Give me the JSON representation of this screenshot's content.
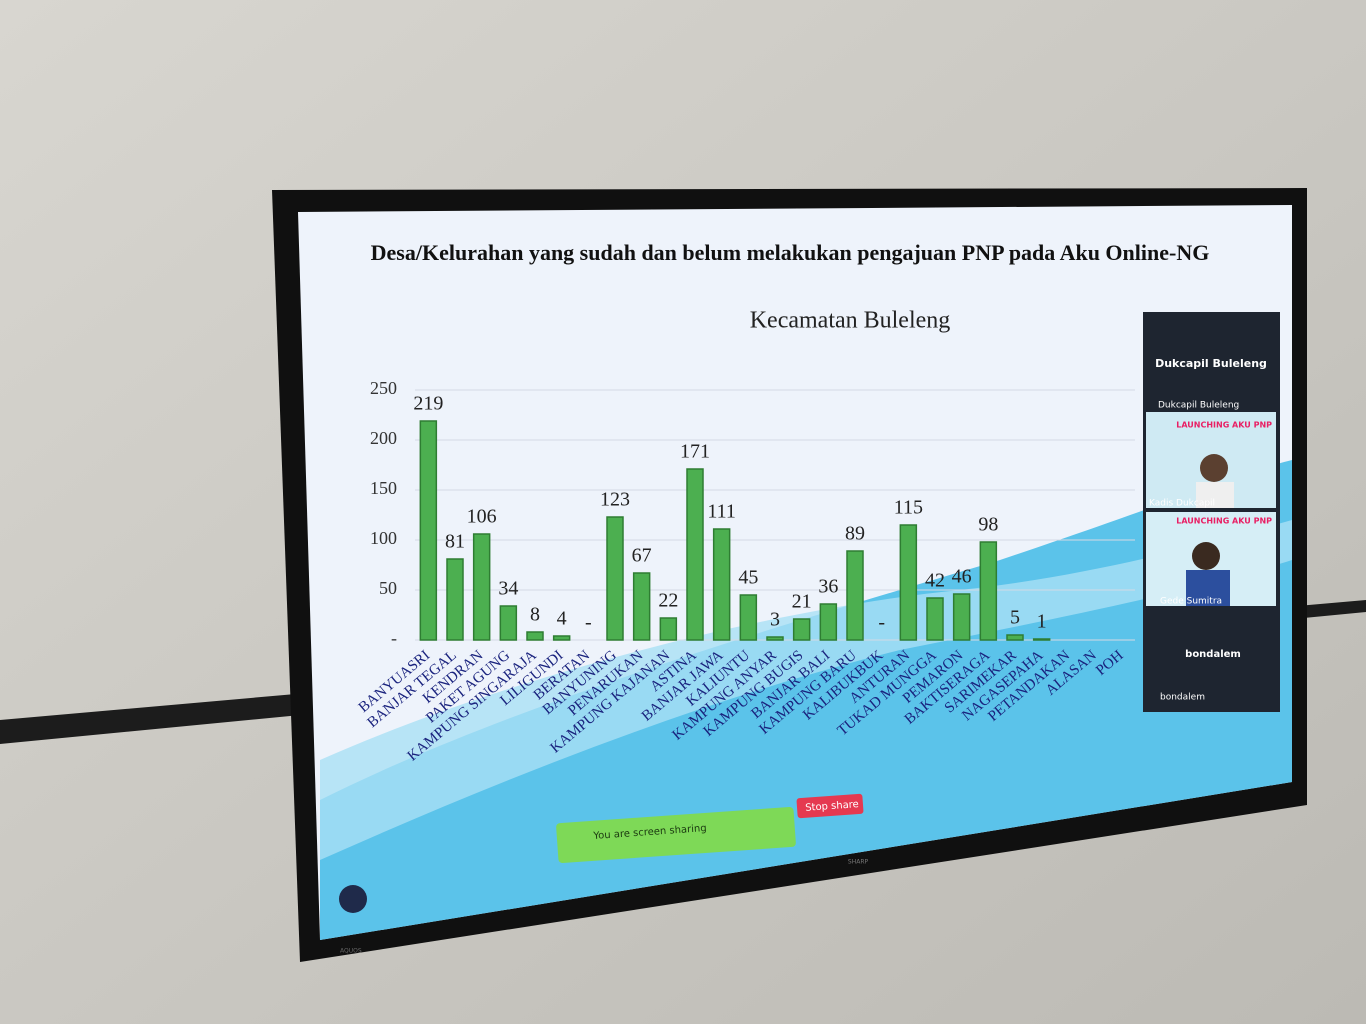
{
  "chart_data": {
    "type": "bar",
    "title": "Desa/Kelurahan yang sudah dan belum melakukan pengajuan PNP pada Aku Online-NG",
    "subtitle": "Kecamatan Buleleng",
    "categories": [
      "BANYUASRI",
      "BANJAR TEGAL",
      "KENDRAN",
      "PAKET AGUNG",
      "KAMPUNG SINGARAJA",
      "LILIGUNDI",
      "BERATAN",
      "BANYUNING",
      "PENARUKAN",
      "KAMPUNG KAJANAN",
      "ASTINA",
      "BANJAR JAWA",
      "KALIUNTU",
      "KAMPUNG ANYAR",
      "KAMPUNG BUGIS",
      "BANJAR BALI",
      "KAMPUNG BARU",
      "KALIBUKBUK",
      "ANTURAN",
      "TUKAD MUNGGA",
      "PEMARON",
      "BAKTISERAGA",
      "SARIMEKAR",
      "NAGASEPAHA",
      "PETANDAKAN",
      "ALASAN",
      "POH"
    ],
    "values": [
      219,
      81,
      106,
      34,
      8,
      4,
      0,
      123,
      67,
      22,
      171,
      111,
      45,
      3,
      21,
      36,
      89,
      0,
      115,
      42,
      46,
      98,
      5,
      1,
      null,
      null,
      null
    ],
    "value_labels": [
      "219",
      "81",
      "106",
      "34",
      "8",
      "4",
      "-",
      "123",
      "67",
      "22",
      "171",
      "111",
      "45",
      "3",
      "21",
      "36",
      "89",
      "-",
      "115",
      "42",
      "46",
      "98",
      "5",
      "1",
      null,
      null,
      null
    ],
    "color": "#4caf50",
    "ylim": [
      0,
      250
    ],
    "yticks": [
      {
        "value": 0,
        "label": "-"
      },
      50,
      100,
      150,
      200,
      250
    ],
    "grid": true
  },
  "meeting": {
    "panel_title": "Dukcapil Buleleng",
    "tiles": [
      {
        "name": "Dukcapil Buleleng"
      },
      {
        "name": "Kadis Dukcapil",
        "banner": "LAUNCHING AKU PNP"
      },
      {
        "name": "Gede Sumitra",
        "banner": "LAUNCHING AKU PNP"
      },
      {
        "name": "bondalem",
        "caption": "bondalem"
      }
    ],
    "share_status": "You are screen sharing",
    "stop_button": "Stop share"
  },
  "tv": {
    "brand": "SHARP",
    "model": "AQUOS"
  }
}
